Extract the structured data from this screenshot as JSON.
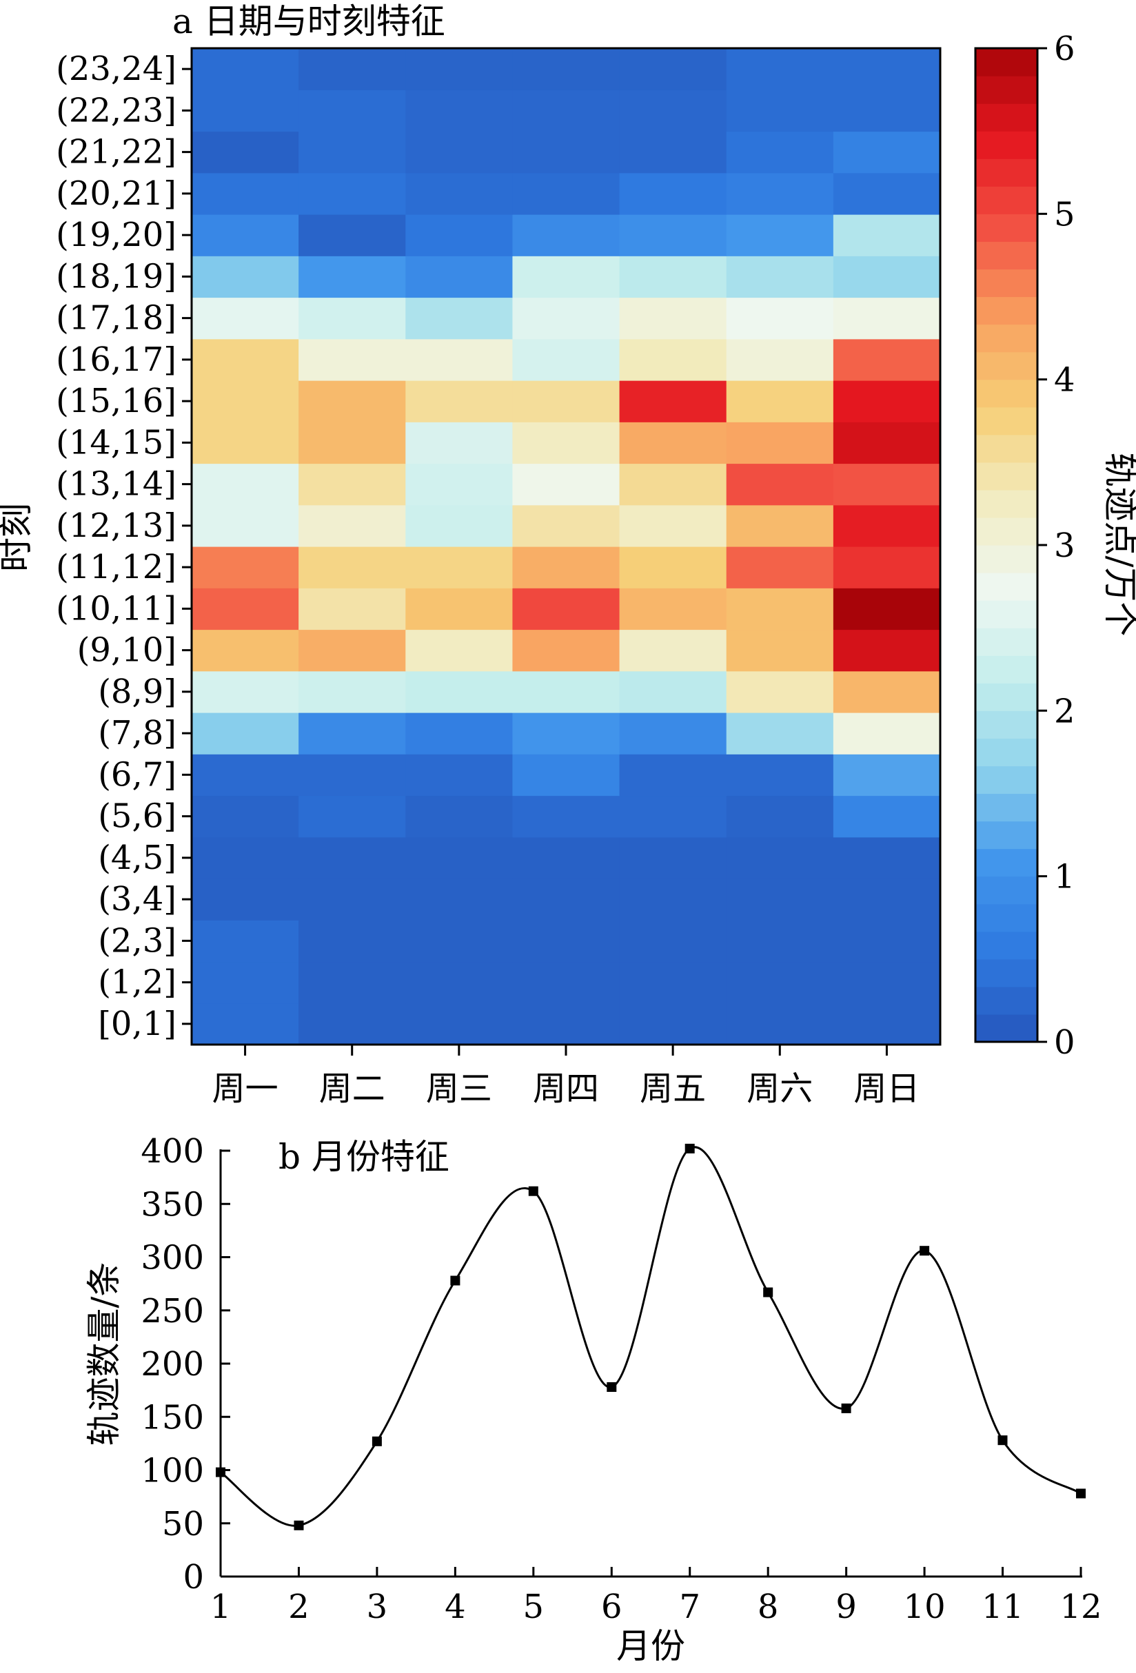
{
  "chart_data": [
    {
      "type": "heatmap",
      "title": "a 日期与时刻特征",
      "ylabel": "时刻",
      "colorbar_label": "轨迹点/万个",
      "x_categories": [
        "周一",
        "周二",
        "周三",
        "周四",
        "周五",
        "周六",
        "周日"
      ],
      "y_categories": [
        "[0,1]",
        "(1,2]",
        "(2,3]",
        "(3,4]",
        "(4,5]",
        "(5,6]",
        "(6,7]",
        "(7,8]",
        "(8,9]",
        "(9,10]",
        "(10,11]",
        "(11,12]",
        "(12,13]",
        "(13,14]",
        "(14,15]",
        "(15,16]",
        "(16,17]",
        "(17,18]",
        "(18,19]",
        "(19,20]",
        "(20,21]",
        "(21,22]",
        "(22,23]",
        "(23,24]"
      ],
      "values": [
        [
          0.35,
          0.15,
          0.15,
          0.15,
          0.15,
          0.15,
          0.15
        ],
        [
          0.35,
          0.15,
          0.15,
          0.15,
          0.15,
          0.15,
          0.15
        ],
        [
          0.35,
          0.15,
          0.15,
          0.15,
          0.15,
          0.15,
          0.15
        ],
        [
          0.15,
          0.15,
          0.15,
          0.15,
          0.15,
          0.15,
          0.15
        ],
        [
          0.15,
          0.15,
          0.15,
          0.15,
          0.15,
          0.15,
          0.15
        ],
        [
          0.2,
          0.35,
          0.2,
          0.3,
          0.3,
          0.2,
          0.75
        ],
        [
          0.3,
          0.3,
          0.3,
          0.75,
          0.3,
          0.3,
          1.2
        ],
        [
          1.6,
          0.85,
          0.65,
          1.05,
          0.85,
          1.8,
          2.9
        ],
        [
          2.4,
          2.3,
          2.2,
          2.2,
          2.1,
          3.35,
          4.1
        ],
        [
          4.0,
          4.2,
          3.25,
          4.3,
          3.2,
          4.0,
          5.6
        ],
        [
          4.8,
          3.45,
          3.95,
          5.0,
          4.1,
          4.0,
          6.0
        ],
        [
          4.6,
          3.7,
          3.7,
          4.2,
          3.8,
          4.8,
          5.2
        ],
        [
          2.55,
          3.1,
          2.3,
          3.45,
          3.25,
          4.05,
          5.4
        ],
        [
          2.55,
          3.5,
          2.35,
          2.8,
          3.6,
          4.95,
          4.9
        ],
        [
          3.7,
          4.05,
          2.45,
          3.25,
          4.25,
          4.3,
          5.6
        ],
        [
          3.7,
          4.05,
          3.55,
          3.55,
          5.35,
          3.75,
          5.45
        ],
        [
          3.7,
          3.0,
          3.0,
          2.4,
          3.3,
          3.0,
          4.8
        ],
        [
          2.6,
          2.35,
          1.95,
          2.55,
          3.0,
          2.75,
          2.85
        ],
        [
          1.55,
          1.1,
          0.85,
          2.3,
          2.1,
          1.9,
          1.75
        ],
        [
          0.8,
          0.2,
          0.5,
          0.85,
          0.95,
          1.1,
          2.0
        ],
        [
          0.45,
          0.45,
          0.35,
          0.35,
          0.55,
          0.65,
          0.45
        ],
        [
          0.15,
          0.35,
          0.25,
          0.25,
          0.25,
          0.45,
          0.7
        ],
        [
          0.35,
          0.35,
          0.25,
          0.25,
          0.25,
          0.35,
          0.35
        ],
        [
          0.35,
          0.2,
          0.2,
          0.2,
          0.2,
          0.35,
          0.35
        ]
      ],
      "colorbar_ticks": [
        "0",
        "1",
        "2",
        "3",
        "4",
        "5",
        "6"
      ],
      "vmin": 0,
      "vmax": 6,
      "color_stops": [
        "#2557bc",
        "#2f7ae0",
        "#4296ec",
        "#8dd2ec",
        "#c4eeec",
        "#eef7f1",
        "#f2ecc0",
        "#f6ce76",
        "#f9a05f",
        "#f25244",
        "#e4171f",
        "#a80409"
      ]
    },
    {
      "type": "line",
      "title": "b 月份特征",
      "xlabel": "月份",
      "ylabel": "轨迹数量/条",
      "x": [
        1,
        2,
        3,
        4,
        5,
        6,
        7,
        8,
        9,
        10,
        11,
        12
      ],
      "y": [
        98,
        48,
        127,
        278,
        362,
        178,
        402,
        267,
        158,
        306,
        128,
        78
      ],
      "xlim": [
        1,
        12
      ],
      "ylim": [
        0,
        400
      ],
      "x_ticks": [
        "1",
        "2",
        "3",
        "4",
        "5",
        "6",
        "7",
        "8",
        "9",
        "10",
        "11",
        "12"
      ],
      "y_ticks": [
        "0",
        "50",
        "100",
        "150",
        "200",
        "250",
        "300",
        "350",
        "400"
      ]
    }
  ]
}
